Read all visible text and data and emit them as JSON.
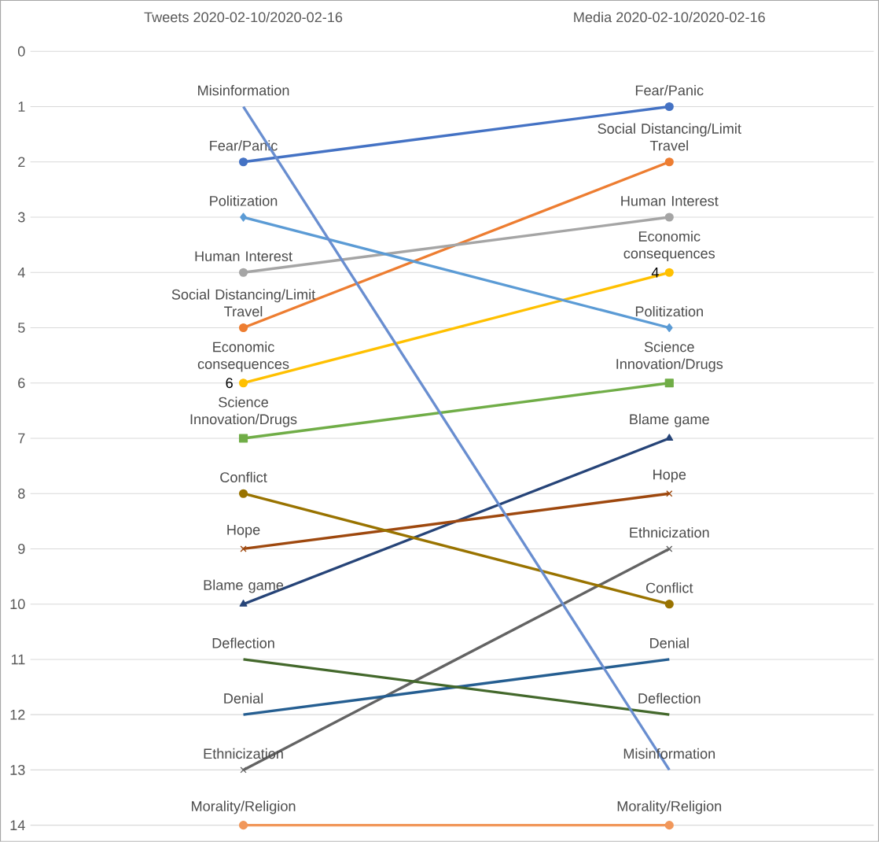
{
  "chart_data": {
    "type": "line",
    "categories": [
      "Tweets 2020-02-10/2020-02-16",
      "Media 2020-02-10/2020-02-16"
    ],
    "ylim": [
      14,
      0
    ],
    "yticks": [
      0,
      1,
      2,
      3,
      4,
      5,
      6,
      7,
      8,
      9,
      10,
      11,
      12,
      13,
      14
    ],
    "grid": "y",
    "series": [
      {
        "name": "Fear/Panic",
        "color": "#4472c4",
        "values": [
          2,
          1
        ],
        "marker": "circle"
      },
      {
        "name": "Social Distancing/Limit Travel",
        "color": "#ed7d31",
        "values": [
          5,
          2
        ],
        "marker": "circle"
      },
      {
        "name": "Human Interest",
        "color": "#a5a5a5",
        "values": [
          4,
          3
        ],
        "marker": "circle"
      },
      {
        "name": "Economic consequences",
        "color": "#ffc000",
        "values": [
          6,
          4
        ],
        "marker": "circle",
        "value_labels": [
          "6",
          "4"
        ]
      },
      {
        "name": "Politization",
        "color": "#5b9bd5",
        "values": [
          3,
          5
        ],
        "marker": "diamond"
      },
      {
        "name": "Science Innovation/Drugs",
        "color": "#70ad47",
        "values": [
          7,
          6
        ],
        "marker": "square"
      },
      {
        "name": "Blame game",
        "color": "#264478",
        "values": [
          10,
          7
        ],
        "marker": "triangle"
      },
      {
        "name": "Hope",
        "color": "#9e480e",
        "values": [
          9,
          8
        ],
        "marker": "cross"
      },
      {
        "name": "Ethnicization",
        "color": "#636363",
        "values": [
          13,
          9
        ],
        "marker": "cross"
      },
      {
        "name": "Conflict",
        "color": "#997300",
        "values": [
          8,
          10
        ],
        "marker": "circle"
      },
      {
        "name": "Denial",
        "color": "#255e91",
        "values": [
          12,
          11
        ],
        "marker": "none"
      },
      {
        "name": "Deflection",
        "color": "#43682b",
        "values": [
          11,
          12
        ],
        "marker": "none"
      },
      {
        "name": "Misinformation",
        "color": "#698ed0",
        "values": [
          1,
          13
        ],
        "marker": "none"
      },
      {
        "name": "Morality/Religion",
        "color": "#f1975a",
        "values": [
          14,
          14
        ],
        "marker": "circle"
      }
    ]
  }
}
